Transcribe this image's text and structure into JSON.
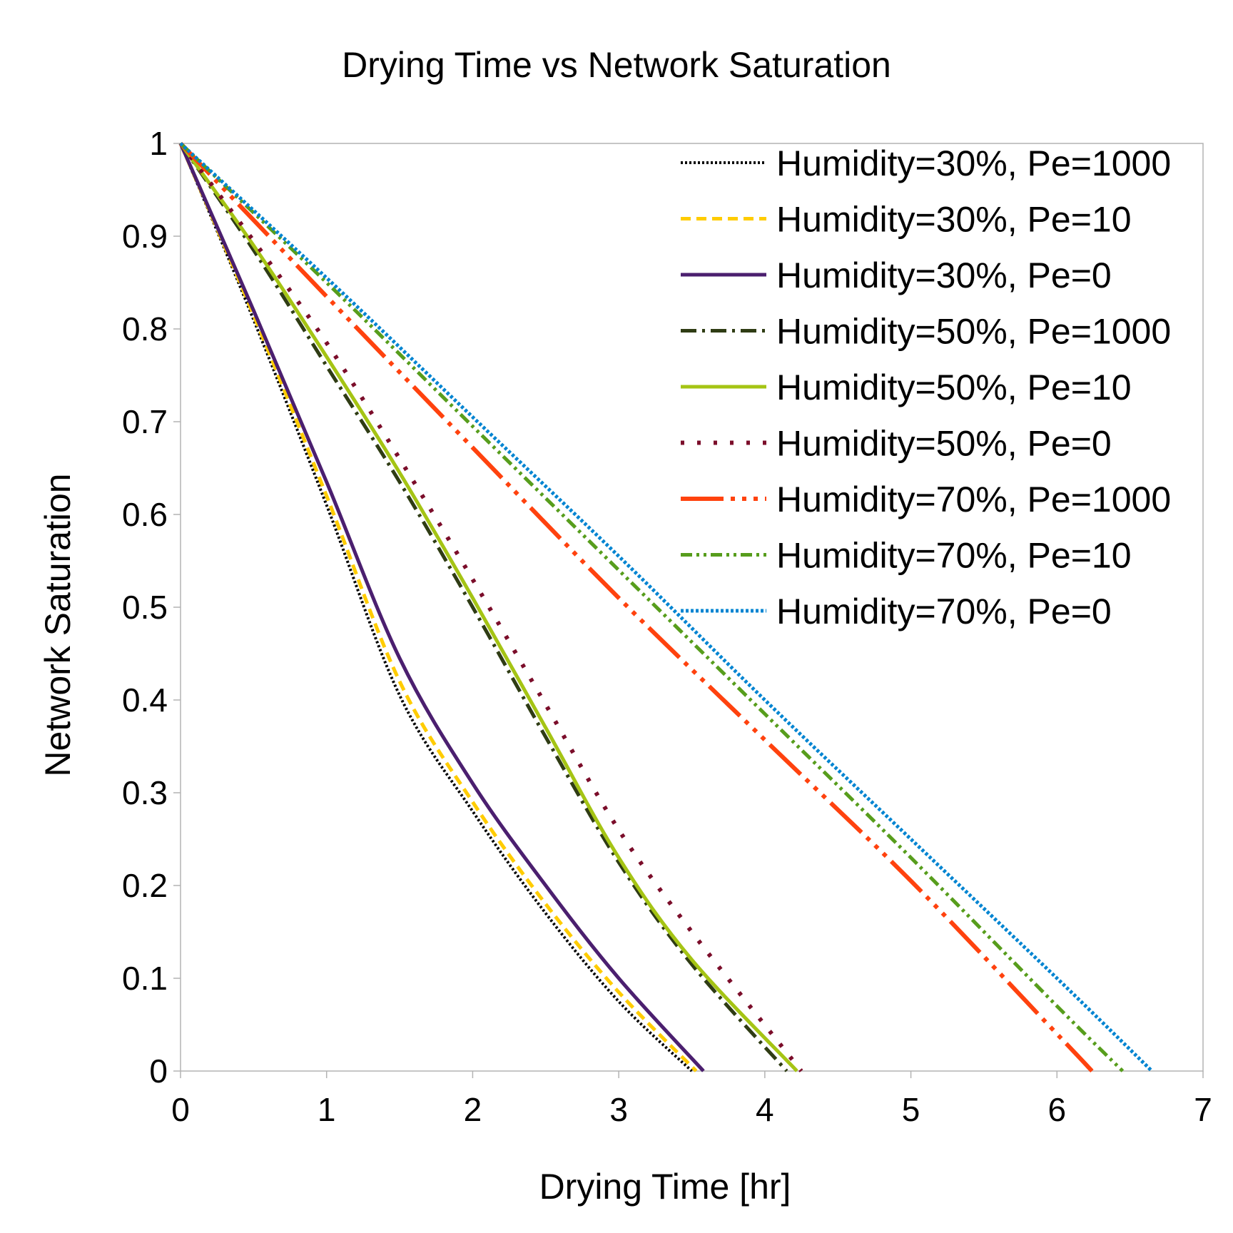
{
  "chart_data": {
    "type": "line",
    "title": "Drying Time vs Network Saturation",
    "xlabel": "Drying Time [hr]",
    "ylabel": "Network Saturation",
    "xlim": [
      0,
      7
    ],
    "ylim": [
      0,
      1
    ],
    "xticks": [
      "0",
      "1",
      "2",
      "3",
      "4",
      "5",
      "6",
      "7"
    ],
    "yticks": [
      "0",
      "0.1",
      "0.2",
      "0.3",
      "0.4",
      "0.5",
      "0.6",
      "0.7",
      "0.8",
      "0.9",
      "1"
    ],
    "grid": false,
    "legend_position": "top-right",
    "series": [
      {
        "name": "Humidity=30%, Pe=1000",
        "color": "#000000",
        "dash": "3,3",
        "width": 4,
        "x": [
          0,
          0.5,
          1.0,
          1.5,
          2.0,
          2.5,
          3.0,
          3.5
        ],
        "y": [
          1.0,
          0.81,
          0.61,
          0.405,
          0.28,
          0.17,
          0.075,
          0.0
        ]
      },
      {
        "name": "Humidity=30%, Pe=10",
        "color": "#ffcc00",
        "dash": "14,8",
        "width": 5,
        "x": [
          0,
          0.5,
          1.0,
          1.5,
          2.0,
          2.5,
          3.0,
          3.53
        ],
        "y": [
          1.0,
          0.815,
          0.62,
          0.42,
          0.29,
          0.18,
          0.085,
          0.0
        ]
      },
      {
        "name": "Humidity=30%, Pe=0",
        "color": "#4b1f6f",
        "dash": "",
        "width": 5,
        "x": [
          0,
          0.5,
          1.0,
          1.5,
          2.0,
          2.5,
          3.0,
          3.58
        ],
        "y": [
          1.0,
          0.82,
          0.635,
          0.445,
          0.31,
          0.2,
          0.1,
          0.0
        ]
      },
      {
        "name": "Humidity=50%, Pe=1000",
        "color": "#2f3c14",
        "dash": "22,8,4,8",
        "width": 5,
        "x": [
          0,
          0.5,
          1.0,
          1.5,
          2.0,
          2.5,
          3.0,
          3.5,
          4.15
        ],
        "y": [
          1.0,
          0.885,
          0.76,
          0.635,
          0.5,
          0.36,
          0.225,
          0.115,
          0.0
        ]
      },
      {
        "name": "Humidity=50%, Pe=10",
        "color": "#a5c414",
        "dash": "",
        "width": 5,
        "x": [
          0,
          0.5,
          1.0,
          1.5,
          2.0,
          2.5,
          3.0,
          3.5,
          4.22
        ],
        "y": [
          1.0,
          0.89,
          0.77,
          0.645,
          0.51,
          0.37,
          0.23,
          0.12,
          0.0
        ]
      },
      {
        "name": "Humidity=50%, Pe=0",
        "color": "#7b0d2a",
        "dash": "5,18",
        "width": 6,
        "x": [
          0,
          0.5,
          1.0,
          1.5,
          2.0,
          2.5,
          3.0,
          3.5,
          4.25
        ],
        "y": [
          1.0,
          0.895,
          0.785,
          0.66,
          0.53,
          0.395,
          0.26,
          0.15,
          0.0
        ]
      },
      {
        "name": "Humidity=70%, Pe=1000",
        "color": "#ff420e",
        "dash": "60,10,6,10,6,10,6,10",
        "width": 6,
        "x": [
          0,
          1.0,
          2.0,
          3.0,
          4.0,
          5.0,
          6.0,
          6.24
        ],
        "y": [
          1.0,
          0.835,
          0.672,
          0.51,
          0.357,
          0.205,
          0.04,
          0.0
        ]
      },
      {
        "name": "Humidity=70%, Pe=10",
        "color": "#579d1c",
        "dash": "16,6,4,6,4,6",
        "width": 5,
        "x": [
          0,
          1.0,
          2.0,
          3.0,
          4.0,
          5.0,
          6.0,
          6.45
        ],
        "y": [
          1.0,
          0.85,
          0.695,
          0.54,
          0.385,
          0.23,
          0.07,
          0.0
        ]
      },
      {
        "name": "Humidity=70%, Pe=0",
        "color": "#0084d1",
        "dash": "4,3",
        "width": 5,
        "x": [
          0,
          1.0,
          2.0,
          3.0,
          4.0,
          5.0,
          6.0,
          6.65
        ],
        "y": [
          1.0,
          0.855,
          0.705,
          0.555,
          0.4,
          0.25,
          0.1,
          0.0
        ]
      }
    ]
  }
}
